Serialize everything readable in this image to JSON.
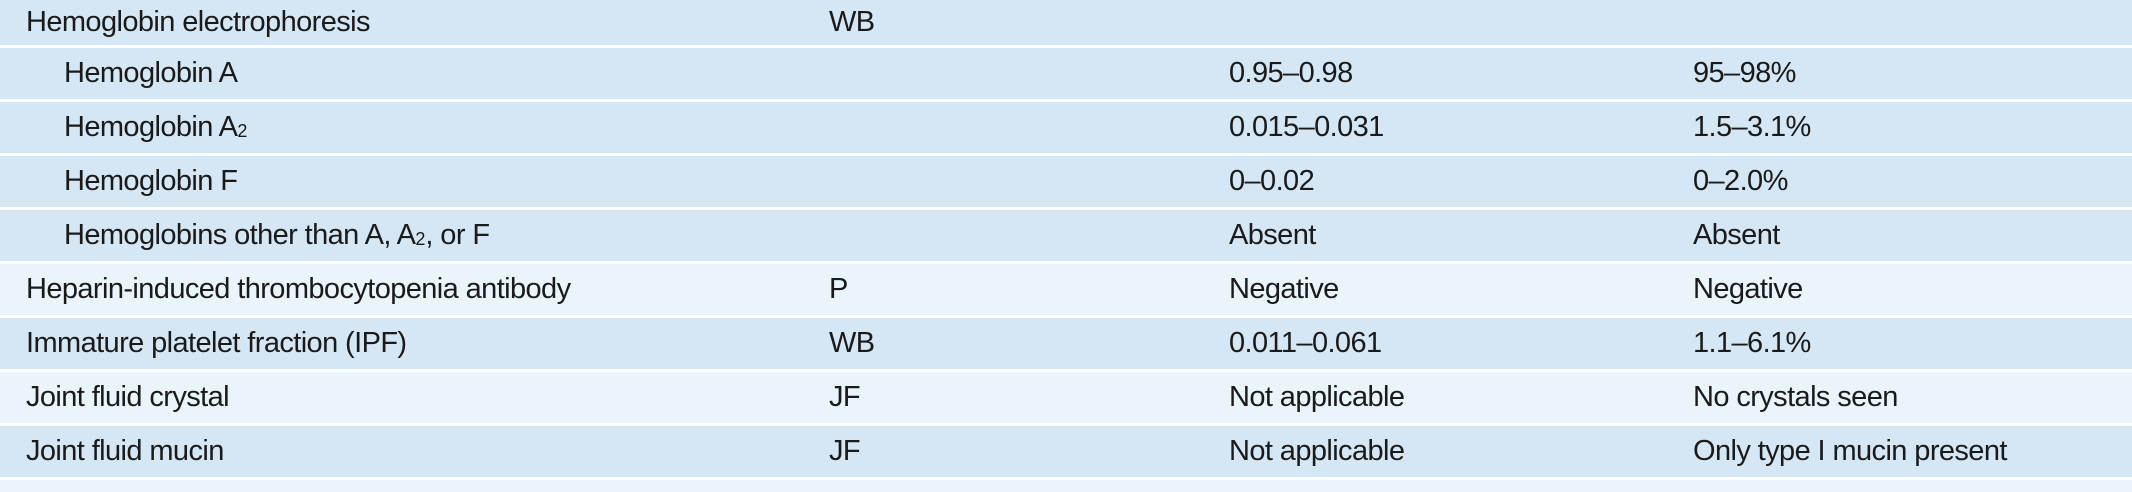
{
  "rows": [
    {
      "name": "Hemoglobin electrophoresis",
      "specimen": "WB",
      "si": "",
      "conventional": ""
    },
    {
      "name": "Hemoglobin A",
      "specimen": "",
      "si": "0.95–0.98",
      "conventional": "95–98%"
    },
    {
      "name_prefix": "Hemoglobin A",
      "name_sub": "2",
      "specimen": "",
      "si": "0.015–0.031",
      "conventional": "1.5–3.1%"
    },
    {
      "name": "Hemoglobin F",
      "specimen": "",
      "si": "0–0.02",
      "conventional": "0–2.0%"
    },
    {
      "name_prefix": "Hemoglobins other than A, A",
      "name_sub": "2",
      "name_suffix": ", or F",
      "specimen": "",
      "si": "Absent",
      "conventional": "Absent"
    },
    {
      "name": "Heparin-induced thrombocytopenia antibody",
      "specimen": "P",
      "si": "Negative",
      "conventional": "Negative"
    },
    {
      "name": "Immature platelet fraction (IPF)",
      "specimen": "WB",
      "si": "0.011–0.061",
      "conventional": "1.1–6.1%"
    },
    {
      "name": "Joint fluid crystal",
      "specimen": "JF",
      "si": "Not applicable",
      "conventional": "No crystals seen"
    },
    {
      "name": "Joint fluid mucin",
      "specimen": "JF",
      "si": "Not applicable",
      "conventional": "Only type I mucin present"
    }
  ]
}
